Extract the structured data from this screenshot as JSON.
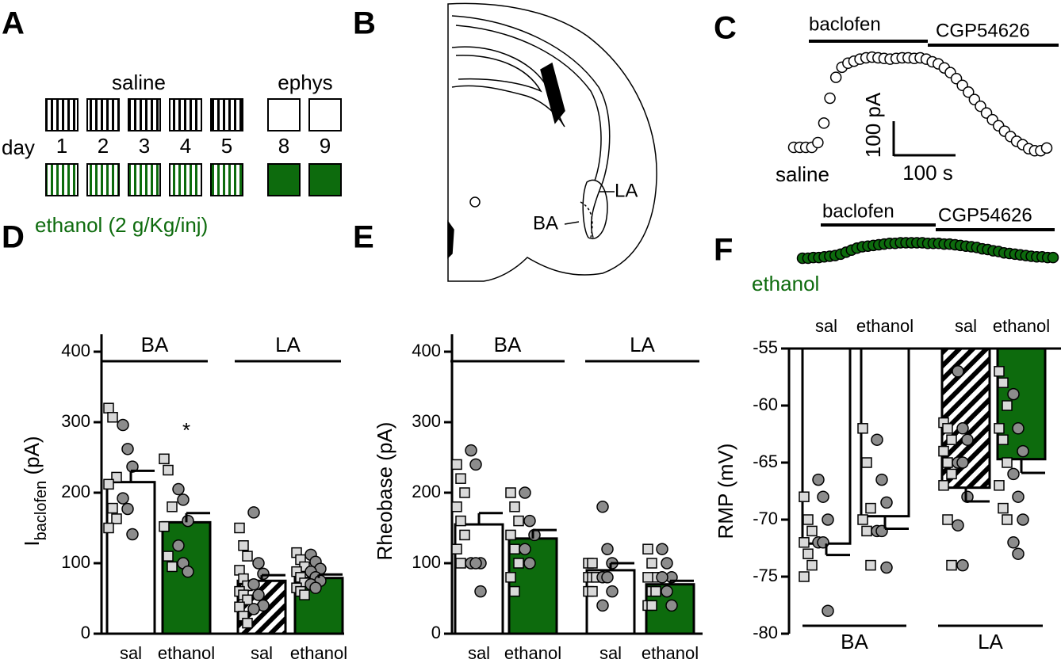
{
  "panel_labels": [
    "A",
    "B",
    "C",
    "D",
    "E",
    "F"
  ],
  "panel_a": {
    "top_label": "saline",
    "ephys_label": "ephys",
    "day_label": "day",
    "days": [
      "1",
      "2",
      "3",
      "4",
      "5",
      "8",
      "9"
    ],
    "bottom_label": "ethanol (2 g/Kg/inj)"
  },
  "panel_b": {
    "la_label": "LA",
    "ba_label": "BA"
  },
  "panel_c": {
    "saline": {
      "drug1": "baclofen",
      "drug2": "CGP54626",
      "label": "saline",
      "color": "#ffffff",
      "values": [
        0,
        0,
        0,
        0,
        14,
        72,
        146,
        208,
        238,
        250,
        256,
        262,
        266,
        268,
        266,
        264,
        262,
        264,
        266,
        266,
        264,
        266,
        262,
        254,
        248,
        236,
        222,
        204,
        184,
        164,
        142,
        122,
        102,
        82,
        64,
        48,
        32,
        18,
        8,
        -4,
        -10,
        -10,
        -2
      ]
    },
    "ethanol": {
      "drug1": "baclofen",
      "drug2": "CGP54626",
      "label": "ethanol",
      "color": "#0d6b0d",
      "values": [
        0,
        0,
        2,
        2,
        4,
        6,
        8,
        12,
        18,
        24,
        30,
        34,
        36,
        38,
        40,
        42,
        44,
        44,
        46,
        46,
        46,
        46,
        46,
        44,
        44,
        44,
        42,
        42,
        40,
        38,
        36,
        34,
        32,
        28,
        26,
        22,
        20,
        16,
        14,
        12,
        10,
        8,
        6,
        4,
        4,
        2,
        2
      ]
    },
    "scale_y": "100 pA",
    "scale_x": "100 s"
  },
  "chart_data": [
    {
      "type": "bar",
      "ylabel_main": "I",
      "ylabel_sub": "baclofen",
      "ylabel_unit": "(pA)",
      "groups": [
        "BA",
        "LA"
      ],
      "categories": [
        "sal",
        "ethanol",
        "sal",
        "ethanol"
      ],
      "values": [
        215,
        158,
        75,
        79
      ],
      "errors": [
        16,
        13,
        8,
        5
      ],
      "colors": [
        "#ffffff",
        "#0d6b0d",
        "#ffffff",
        "#0d6b0d"
      ],
      "patterns": [
        "solid",
        "solid",
        "hatched",
        "solid"
      ],
      "bars_from": "bottom",
      "annotation": "*",
      "points": [
        {
          "squares": [
            320,
            307,
            222,
            212,
            178,
            163,
            150
          ],
          "circles": [
            296,
            262,
            237,
            192,
            177,
            141
          ]
        },
        {
          "squares": [
            248,
            232,
            180,
            152,
            110,
            95
          ],
          "circles": [
            205,
            190,
            160,
            125,
            100,
            88
          ]
        },
        {
          "squares": [
            150,
            125,
            110,
            90,
            78,
            68,
            60,
            55,
            48,
            38,
            25,
            15
          ],
          "circles": [
            172,
            100,
            85,
            70,
            55,
            40,
            35
          ]
        },
        {
          "squares": [
            115,
            105,
            95,
            88,
            80,
            72,
            65,
            60,
            55
          ],
          "circles": [
            112,
            102,
            92,
            88,
            80,
            75,
            70,
            65
          ]
        }
      ],
      "ylim": [
        0,
        400
      ],
      "yticks": [
        0,
        100,
        200,
        300,
        400
      ]
    },
    {
      "type": "bar",
      "ylabel": "Rheobase (pA)",
      "groups": [
        "BA",
        "LA"
      ],
      "categories": [
        "sal",
        "ethanol",
        "sal",
        "ethanol"
      ],
      "values": [
        155,
        135,
        90,
        70
      ],
      "errors": [
        16,
        12,
        10,
        5
      ],
      "colors": [
        "#ffffff",
        "#0d6b0d",
        "#ffffff",
        "#0d6b0d"
      ],
      "patterns": [
        "solid",
        "solid",
        "solid",
        "solid"
      ],
      "bars_from": "bottom",
      "points": [
        {
          "squares": [
            240,
            220,
            200,
            180,
            160,
            140,
            120,
            100
          ],
          "circles": [
            260,
            240,
            100,
            100,
            100,
            60
          ]
        },
        {
          "squares": [
            200,
            180,
            160,
            140,
            120,
            100,
            80,
            60
          ],
          "circles": [
            200,
            160,
            140,
            120,
            100
          ]
        },
        {
          "squares": [
            100,
            100,
            80,
            80,
            80,
            80,
            60,
            60
          ],
          "circles": [
            180,
            120,
            100,
            80,
            80,
            60,
            40
          ]
        },
        {
          "squares": [
            120,
            100,
            80,
            80,
            60,
            60,
            40,
            40
          ],
          "circles": [
            120,
            100,
            80,
            80,
            60,
            40
          ]
        }
      ],
      "ylim": [
        0,
        400
      ],
      "yticks": [
        0,
        100,
        200,
        300,
        400
      ]
    },
    {
      "type": "bar",
      "ylabel": "RMP (mV)",
      "groups": [
        "BA",
        "LA"
      ],
      "categories": [
        "sal",
        "ethanol",
        "sal",
        "ethanol"
      ],
      "values": [
        -72.1,
        -69.7,
        -67.2,
        -64.7
      ],
      "errors": [
        1.0,
        1.1,
        1.2,
        1.2
      ],
      "colors": [
        "#ffffff",
        "#ffffff",
        "#ffffff",
        "#0d6b0d"
      ],
      "patterns": [
        "solid",
        "solid",
        "hatched",
        "solid"
      ],
      "bars_from": "top",
      "points": [
        {
          "squares": [
            -68,
            -70,
            -71,
            -72,
            -73,
            -74,
            -75
          ],
          "circles": [
            -66.5,
            -68,
            -70,
            -72,
            -72,
            -78
          ]
        },
        {
          "squares": [
            -62,
            -65,
            -69,
            -70,
            -71,
            -74
          ],
          "circles": [
            -63,
            -66.5,
            -68.5,
            -71,
            -71,
            -74.2
          ]
        },
        {
          "squares": [
            -61.5,
            -62,
            -63,
            -64,
            -65,
            -66,
            -67,
            -70,
            -74
          ],
          "circles": [
            -57,
            -62,
            -63,
            -65,
            -65,
            -68,
            -70.5,
            -74
          ]
        },
        {
          "squares": [
            -57,
            -58,
            -60,
            -62,
            -63,
            -65,
            -67,
            -69,
            -70
          ],
          "circles": [
            -59,
            -62,
            -64,
            -66,
            -68,
            -70,
            -72,
            -73
          ]
        }
      ],
      "ylim": [
        -80,
        -55
      ],
      "yticks": [
        -80,
        -75,
        -70,
        -65,
        -60,
        -55
      ]
    }
  ]
}
